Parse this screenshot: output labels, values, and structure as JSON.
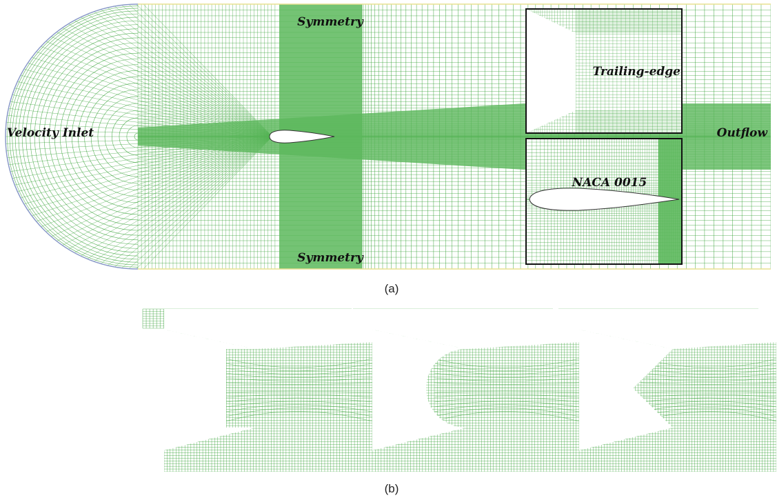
{
  "figure_a": {
    "labels": {
      "top_boundary": "Symmetry",
      "bottom_boundary": "Symmetry",
      "inlet": "Velocity Inlet",
      "outlet": "Outflow",
      "inset_top": "Trailing-edge",
      "inset_bottom": "NACA 0015"
    },
    "caption": "(a)"
  },
  "figure_b": {
    "caption": "(b)",
    "panels": [
      {
        "shape": "blunt-square-trailing-edge"
      },
      {
        "shape": "semicircular-trailing-edge"
      },
      {
        "shape": "triangular-trailing-edge"
      }
    ]
  },
  "colors": {
    "mesh": "#2e9e2e",
    "mesh_dense": "#5cb85c",
    "inlet_arc": "#8a9ac8",
    "boundary": "#e8e090",
    "frame": "#111111"
  }
}
